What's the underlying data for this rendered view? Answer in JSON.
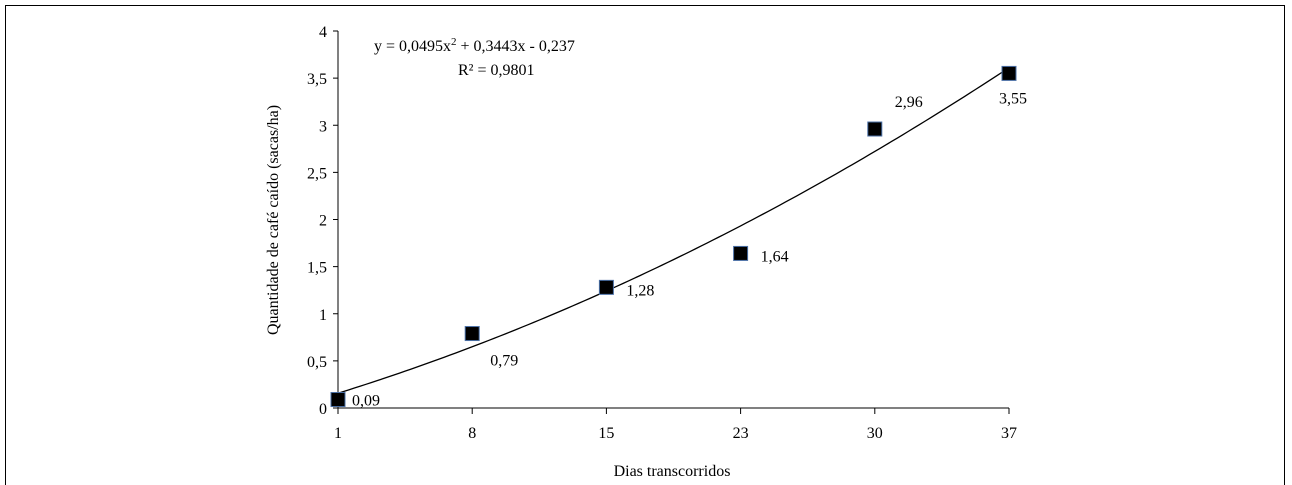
{
  "chart_data": {
    "type": "scatter",
    "xlabel": "Dias transcorridos",
    "ylabel": "Quantidade de café caído (sacas/ha)",
    "x_categories": [
      "1",
      "8",
      "15",
      "23",
      "30",
      "37"
    ],
    "y_ticks": [
      "0",
      "0,5",
      "1",
      "1,5",
      "2",
      "2,5",
      "3",
      "3,5",
      "4"
    ],
    "ylim": [
      0,
      4
    ],
    "points": [
      {
        "x": "1",
        "y": 0.09,
        "label": "0,09"
      },
      {
        "x": "8",
        "y": 0.79,
        "label": "0,79"
      },
      {
        "x": "15",
        "y": 1.28,
        "label": "1,28"
      },
      {
        "x": "23",
        "y": 1.64,
        "label": "1,64"
      },
      {
        "x": "30",
        "y": 2.96,
        "label": "2,96"
      },
      {
        "x": "37",
        "y": 3.55,
        "label": "3,55"
      }
    ],
    "trendline": {
      "type": "polynomial",
      "coefficients": [
        0.0495,
        0.3443,
        -0.237
      ],
      "equation_prefix": "y = 0,0495x",
      "equation_sup": "2",
      "equation_suffix": " + 0,3443x - 0,237",
      "r2_label": "R² = 0,9801"
    },
    "marker_color": "#000000",
    "marker_edge_color": "#4a6fa5",
    "grid": false,
    "legend": "none"
  }
}
